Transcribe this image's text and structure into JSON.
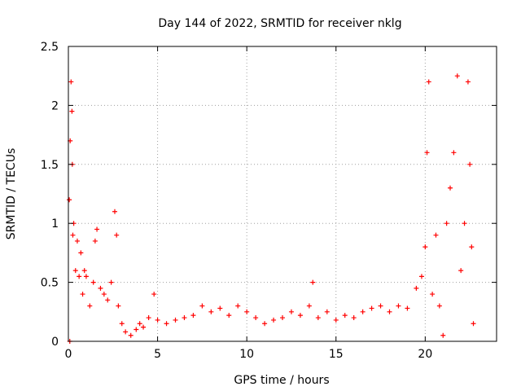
{
  "chart_data": {
    "type": "scatter",
    "title": "Day 144 of 2022, SRMTID for receiver nklg",
    "xlabel": "GPS time / hours",
    "ylabel": "SRMTID / TECUs",
    "xlim": [
      0,
      24
    ],
    "ylim": [
      0,
      2.5
    ],
    "xticks": [
      0,
      5,
      10,
      15,
      20
    ],
    "yticks": [
      0,
      0.5,
      1,
      1.5,
      2,
      2.5
    ],
    "xtick_labels": [
      "0",
      "5",
      "10",
      "15",
      "20"
    ],
    "ytick_labels": [
      "0",
      "0.5",
      "1",
      "1.5",
      "2",
      "2.5"
    ],
    "grid": true,
    "marker": "+",
    "color": "#ff0000",
    "series": [
      {
        "name": "SRMTID",
        "points": [
          [
            0.05,
            1.2
          ],
          [
            0.08,
            0.0
          ],
          [
            0.1,
            1.7
          ],
          [
            0.15,
            2.2
          ],
          [
            0.2,
            1.95
          ],
          [
            0.22,
            1.5
          ],
          [
            0.25,
            0.9
          ],
          [
            0.3,
            1.0
          ],
          [
            0.4,
            0.6
          ],
          [
            0.5,
            0.85
          ],
          [
            0.6,
            0.55
          ],
          [
            0.7,
            0.75
          ],
          [
            0.8,
            0.4
          ],
          [
            0.9,
            0.6
          ],
          [
            1.0,
            0.55
          ],
          [
            1.2,
            0.3
          ],
          [
            1.4,
            0.5
          ],
          [
            1.5,
            0.85
          ],
          [
            1.6,
            0.95
          ],
          [
            1.8,
            0.45
          ],
          [
            2.0,
            0.4
          ],
          [
            2.2,
            0.35
          ],
          [
            2.4,
            0.5
          ],
          [
            2.6,
            1.1
          ],
          [
            2.7,
            0.9
          ],
          [
            2.8,
            0.3
          ],
          [
            3.0,
            0.15
          ],
          [
            3.2,
            0.08
          ],
          [
            3.5,
            0.05
          ],
          [
            3.8,
            0.1
          ],
          [
            4.0,
            0.15
          ],
          [
            4.2,
            0.12
          ],
          [
            4.5,
            0.2
          ],
          [
            4.8,
            0.4
          ],
          [
            5.0,
            0.18
          ],
          [
            5.5,
            0.15
          ],
          [
            6.0,
            0.18
          ],
          [
            6.5,
            0.2
          ],
          [
            7.0,
            0.22
          ],
          [
            7.5,
            0.3
          ],
          [
            8.0,
            0.25
          ],
          [
            8.5,
            0.28
          ],
          [
            9.0,
            0.22
          ],
          [
            9.5,
            0.3
          ],
          [
            10.0,
            0.25
          ],
          [
            10.5,
            0.2
          ],
          [
            11.0,
            0.15
          ],
          [
            11.5,
            0.18
          ],
          [
            12.0,
            0.2
          ],
          [
            12.5,
            0.25
          ],
          [
            13.0,
            0.22
          ],
          [
            13.5,
            0.3
          ],
          [
            13.7,
            0.5
          ],
          [
            14.0,
            0.2
          ],
          [
            14.5,
            0.25
          ],
          [
            15.0,
            0.18
          ],
          [
            15.5,
            0.22
          ],
          [
            16.0,
            0.2
          ],
          [
            16.5,
            0.25
          ],
          [
            17.0,
            0.28
          ],
          [
            17.5,
            0.3
          ],
          [
            18.0,
            0.25
          ],
          [
            18.5,
            0.3
          ],
          [
            19.0,
            0.28
          ],
          [
            19.5,
            0.45
          ],
          [
            19.8,
            0.55
          ],
          [
            20.0,
            0.8
          ],
          [
            20.1,
            1.6
          ],
          [
            20.2,
            2.2
          ],
          [
            20.4,
            0.4
          ],
          [
            20.6,
            0.9
          ],
          [
            20.8,
            0.3
          ],
          [
            21.0,
            0.05
          ],
          [
            21.2,
            1.0
          ],
          [
            21.4,
            1.3
          ],
          [
            21.6,
            1.6
          ],
          [
            21.8,
            2.25
          ],
          [
            22.0,
            0.6
          ],
          [
            22.2,
            1.0
          ],
          [
            22.4,
            2.2
          ],
          [
            22.5,
            1.5
          ],
          [
            22.6,
            0.8
          ],
          [
            22.7,
            0.15
          ]
        ]
      }
    ]
  }
}
